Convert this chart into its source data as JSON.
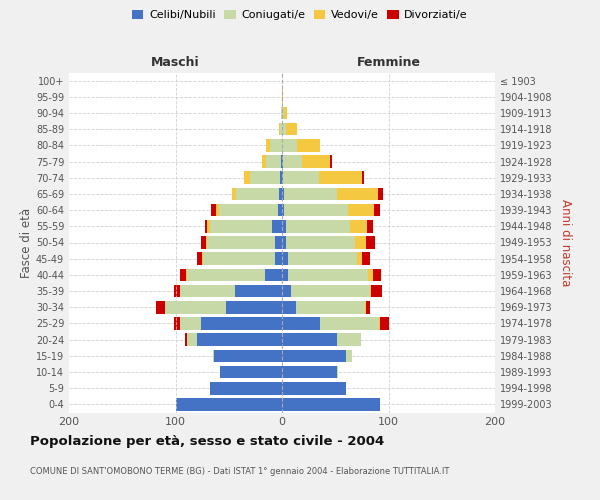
{
  "age_groups": [
    "0-4",
    "5-9",
    "10-14",
    "15-19",
    "20-24",
    "25-29",
    "30-34",
    "35-39",
    "40-44",
    "45-49",
    "50-54",
    "55-59",
    "60-64",
    "65-69",
    "70-74",
    "75-79",
    "80-84",
    "85-89",
    "90-94",
    "95-99",
    "100+"
  ],
  "birth_years": [
    "1999-2003",
    "1994-1998",
    "1989-1993",
    "1984-1988",
    "1979-1983",
    "1974-1978",
    "1969-1973",
    "1964-1968",
    "1959-1963",
    "1954-1958",
    "1949-1953",
    "1944-1948",
    "1939-1943",
    "1934-1938",
    "1929-1933",
    "1924-1928",
    "1919-1923",
    "1914-1918",
    "1909-1913",
    "1904-1908",
    "≤ 1903"
  ],
  "males": {
    "celibi": [
      100,
      68,
      58,
      64,
      80,
      76,
      53,
      44,
      16,
      7,
      7,
      9,
      4,
      3,
      2,
      1,
      0,
      0,
      0,
      0,
      0
    ],
    "coniugati": [
      0,
      0,
      0,
      1,
      9,
      20,
      57,
      52,
      73,
      67,
      63,
      59,
      55,
      40,
      28,
      14,
      11,
      2,
      1,
      0,
      0
    ],
    "vedovi": [
      0,
      0,
      0,
      0,
      0,
      0,
      0,
      0,
      1,
      1,
      1,
      2,
      3,
      4,
      6,
      4,
      4,
      1,
      0,
      0,
      0
    ],
    "divorziati": [
      0,
      0,
      0,
      0,
      2,
      5,
      8,
      5,
      6,
      5,
      5,
      2,
      5,
      0,
      0,
      0,
      0,
      0,
      0,
      0,
      0
    ]
  },
  "females": {
    "nubili": [
      92,
      60,
      52,
      60,
      52,
      36,
      13,
      8,
      6,
      6,
      4,
      4,
      2,
      2,
      1,
      1,
      0,
      0,
      0,
      0,
      0
    ],
    "coniugate": [
      0,
      0,
      1,
      6,
      22,
      55,
      65,
      75,
      75,
      64,
      65,
      60,
      60,
      50,
      34,
      18,
      14,
      4,
      2,
      0,
      0
    ],
    "vedove": [
      0,
      0,
      0,
      0,
      0,
      1,
      1,
      1,
      4,
      5,
      10,
      16,
      24,
      38,
      40,
      26,
      22,
      10,
      3,
      1,
      0
    ],
    "divorziate": [
      0,
      0,
      0,
      0,
      0,
      8,
      4,
      10,
      8,
      8,
      8,
      5,
      6,
      5,
      2,
      2,
      0,
      0,
      0,
      0,
      0
    ]
  },
  "colors": {
    "celibi_nubili": "#4472c4",
    "coniugati_e": "#c8d9a8",
    "vedovi_e": "#f5c842",
    "divorziati_e": "#cc0000"
  },
  "xlim": 200,
  "title": "Popolazione per età, sesso e stato civile - 2004",
  "subtitle": "COMUNE DI SANT'OMOBONO TERME (BG) - Dati ISTAT 1° gennaio 2004 - Elaborazione TUTTITALIA.IT",
  "xlabel_left": "Maschi",
  "xlabel_right": "Femmine",
  "ylabel_left": "Fasce di età",
  "ylabel_right": "Anni di nascita",
  "bg_color": "#f0f0f0",
  "plot_bg": "#ffffff",
  "grid_color": "#cccccc"
}
